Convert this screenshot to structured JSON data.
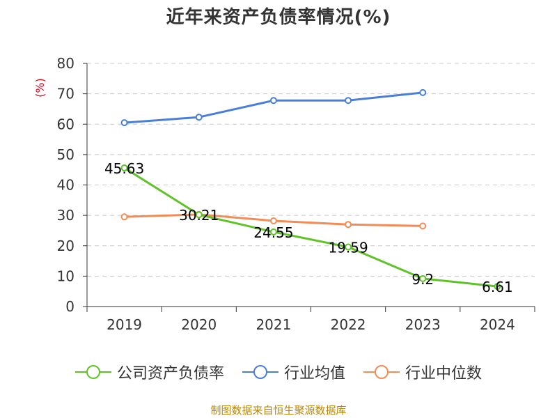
{
  "title": "近年来资产负债率情况(%)",
  "source_note": "制图数据来自恒生聚源数据库",
  "chart_data": {
    "type": "line",
    "title": "近年来资产负债率情况(%)",
    "ylabel": "(%)",
    "categories": [
      "2019",
      "2020",
      "2021",
      "2022",
      "2023",
      "2024"
    ],
    "ylim": [
      0,
      80
    ],
    "yticks": [
      0,
      10,
      20,
      30,
      40,
      50,
      60,
      70,
      80
    ],
    "grid": true,
    "legend_position": "bottom",
    "series": [
      {
        "name": "公司资产负债率",
        "color": "#5ec326",
        "values": [
          45.63,
          30.21,
          24.55,
          19.59,
          9.2,
          6.61
        ],
        "labels": [
          "45.63",
          "30.21",
          "24.55",
          "19.59",
          "9.2",
          "6.61"
        ]
      },
      {
        "name": "行业均值",
        "color": "#4a7fd9",
        "values": [
          60.5,
          62.3,
          67.8,
          67.8,
          70.4,
          null
        ]
      },
      {
        "name": "行业中位数",
        "color": "#f28b54",
        "values": [
          29.5,
          30.3,
          28.2,
          27.0,
          26.5,
          null
        ]
      }
    ]
  }
}
